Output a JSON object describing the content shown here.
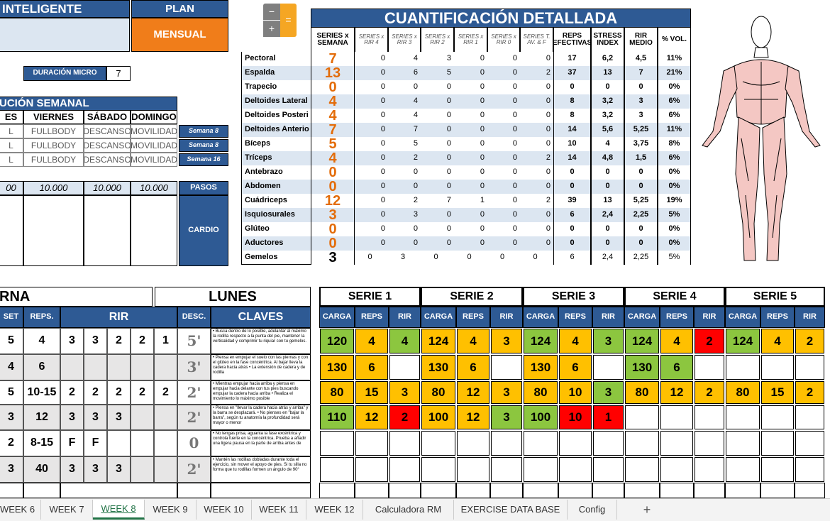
{
  "top": {
    "title": "INTELIGENTE",
    "plan": "PLAN",
    "mensual": "MENSUAL",
    "duracion_label": "DURACIÓN MICRO",
    "duracion_value": "7"
  },
  "calculator": {
    "keys": [
      "−",
      "+",
      "="
    ]
  },
  "semanal": {
    "title": "UCIÓN SEMANAL",
    "headers": [
      "ES",
      "VIERNES",
      "SÁBADO",
      "DOMINGO"
    ],
    "rows": [
      [
        "L",
        "FULLBODY",
        "DESCANSO",
        "MOVILIDAD",
        "Semana 8"
      ],
      [
        "L",
        "FULLBODY",
        "DESCANSO",
        "MOVILIDAD",
        "Semana 8"
      ],
      [
        "L",
        "FULLBODY",
        "DESCANSO",
        "MOVILIDAD",
        "Semana 16"
      ]
    ],
    "pasos": [
      "00",
      "10.000",
      "10.000",
      "10.000"
    ],
    "pasos_label": "PASOS",
    "cardio_label": "CARDIO"
  },
  "cuantificacion": {
    "title": "CUANTIFICACIÓN DETALLADA",
    "headers": [
      "SERIES x SEMANA",
      "SERIES x RIR 4",
      "SERIES x RIR 3",
      "SERIES x RIR 2",
      "SERIES x RIR 1",
      "SERIES x RIR 0",
      "SERIES T. AV. & F",
      "REPS EFECTIVAS",
      "STRESS INDEX",
      "RIR MEDIO",
      "% VOL."
    ],
    "rows": [
      {
        "name": "Pectoral",
        "values": [
          "7",
          "0",
          "4",
          "3",
          "0",
          "0",
          "0",
          "17",
          "6,2",
          "4,5",
          "11%"
        ]
      },
      {
        "name": "Espalda",
        "values": [
          "13",
          "0",
          "6",
          "5",
          "0",
          "0",
          "2",
          "37",
          "13",
          "7",
          "21%"
        ]
      },
      {
        "name": "Trapecio",
        "values": [
          "0",
          "0",
          "0",
          "0",
          "0",
          "0",
          "0",
          "0",
          "0",
          "0",
          "0%"
        ]
      },
      {
        "name": "Deltoides Lateral",
        "values": [
          "4",
          "0",
          "4",
          "0",
          "0",
          "0",
          "0",
          "8",
          "3,2",
          "3",
          "6%"
        ]
      },
      {
        "name": "Deltoides Posteri",
        "values": [
          "4",
          "0",
          "4",
          "0",
          "0",
          "0",
          "0",
          "8",
          "3,2",
          "3",
          "6%"
        ]
      },
      {
        "name": "Deltoides Anterio",
        "values": [
          "7",
          "0",
          "7",
          "0",
          "0",
          "0",
          "0",
          "14",
          "5,6",
          "5,25",
          "11%"
        ]
      },
      {
        "name": "Bíceps",
        "values": [
          "5",
          "0",
          "5",
          "0",
          "0",
          "0",
          "0",
          "10",
          "4",
          "3,75",
          "8%"
        ]
      },
      {
        "name": "Tríceps",
        "values": [
          "4",
          "0",
          "2",
          "0",
          "0",
          "0",
          "2",
          "14",
          "4,8",
          "1,5",
          "6%"
        ]
      },
      {
        "name": "Antebrazo",
        "values": [
          "0",
          "0",
          "0",
          "0",
          "0",
          "0",
          "0",
          "0",
          "0",
          "0",
          "0%"
        ]
      },
      {
        "name": "Abdomen",
        "values": [
          "0",
          "0",
          "0",
          "0",
          "0",
          "0",
          "0",
          "0",
          "0",
          "0",
          "0%"
        ]
      },
      {
        "name": "Cuádriceps",
        "values": [
          "12",
          "0",
          "2",
          "7",
          "1",
          "0",
          "2",
          "39",
          "13",
          "5,25",
          "19%"
        ]
      },
      {
        "name": "Isquiosurales",
        "values": [
          "3",
          "0",
          "3",
          "0",
          "0",
          "0",
          "0",
          "6",
          "2,4",
          "2,25",
          "5%"
        ]
      },
      {
        "name": "Glúteo",
        "values": [
          "0",
          "0",
          "0",
          "0",
          "0",
          "0",
          "0",
          "0",
          "0",
          "0",
          "0%"
        ]
      },
      {
        "name": "Aductores",
        "values": [
          "0",
          "0",
          "0",
          "0",
          "0",
          "0",
          "0",
          "0",
          "0",
          "0",
          "0%"
        ]
      },
      {
        "name": "Gemelos",
        "values": [
          "3",
          "0",
          "3",
          "0",
          "0",
          "0",
          "0",
          "6",
          "2,4",
          "2,25",
          "5%"
        ]
      }
    ]
  },
  "session": {
    "name": "RNA",
    "day": "LUNES",
    "headers": [
      "SET",
      "REPS.",
      "RIR",
      "DESC.",
      "CLAVES"
    ],
    "rows": [
      {
        "set": "5",
        "reps": "4",
        "rir": [
          "3",
          "3",
          "2",
          "2",
          "1"
        ],
        "desc": "5'",
        "claves": "• Busca dentro de lo posible, adelantar al máximo la rodilla respecto a la punta del pie, mantener la verticalidad y comprimir tu riquiar con tu gemelos."
      },
      {
        "set": "4",
        "reps": "6",
        "rir": [
          null,
          null,
          null,
          null,
          null
        ],
        "desc": "3'",
        "claves": "• Piensa en empujar el suelo con las piernas y con el glúteo en la fase concéntrica. Al bajar lleva la cadera hacia atrás • La extensión de cadera y de rodilla"
      },
      {
        "set": "5",
        "reps": "10-15",
        "rir": [
          "2",
          "2",
          "2",
          "2",
          "2"
        ],
        "desc": "2'",
        "claves": "• Mientras empujar hacia arriba y piensa en empujar hacia delante con tus pies buscando empujar la cadera hacia arriba • Realiza el movimiento lo máximo posible"
      },
      {
        "set": "3",
        "reps": "12",
        "rir": [
          "3",
          "3",
          "3",
          null,
          null
        ],
        "desc": "2'",
        "claves": "• Piensa en \"llevar la cadera hacia atrás y arriba\" y la barra se desplazará. • No pienses en \"bajar la barra\", según tu anatomía la profundidad será mayor o menor"
      },
      {
        "set": "2",
        "reps": "8-15",
        "rir": [
          "F",
          "F",
          null,
          null,
          null
        ],
        "desc": "0",
        "claves": "• No tengas prisa, aguanta la fase excéntrica y controla fuerte en la concéntrica. Prueba a añadir una ligera pausa en la parte de arriba antes de"
      },
      {
        "set": "3",
        "reps": "40",
        "rir": [
          "3",
          "3",
          "3",
          null,
          null
        ],
        "desc": "2'",
        "claves": "• Mantén las rodillas dobladas durante toda el ejercicio, sin mover el apoyo de pies. Si tu silla no forma que tu rodillas formen un ángulo de 90°"
      }
    ]
  },
  "series": {
    "names": [
      "SERIE 1",
      "SERIE 2",
      "SERIE 3",
      "SERIE 4",
      "SERIE 5"
    ],
    "subheaders": [
      "CARGA",
      "REPS",
      "RIR"
    ],
    "rows": [
      [
        {
          "text": "120",
          "fill": "#8cc63f"
        },
        {
          "text": "4",
          "fill": "#ffc000"
        },
        {
          "text": "4",
          "fill": "#8cc63f"
        },
        {
          "text": "124",
          "fill": "#ffc000"
        },
        {
          "text": "4",
          "fill": "#ffc000"
        },
        {
          "text": "3",
          "fill": "#ffc000"
        },
        {
          "text": "124",
          "fill": "#8cc63f"
        },
        {
          "text": "4",
          "fill": "#ffc000"
        },
        {
          "text": "3",
          "fill": "#8cc63f"
        },
        {
          "text": "124",
          "fill": "#8cc63f"
        },
        {
          "text": "4",
          "fill": "#ffc000"
        },
        {
          "text": "2",
          "fill": "#ff0000"
        },
        {
          "text": "124",
          "fill": "#8cc63f"
        },
        {
          "text": "4",
          "fill": "#ffc000"
        },
        {
          "text": "2",
          "fill": "#ffc000"
        }
      ],
      [
        {
          "text": "130",
          "fill": "#ffc000"
        },
        {
          "text": "6",
          "fill": "#ffc000"
        },
        null,
        {
          "text": "130",
          "fill": "#ffc000"
        },
        {
          "text": "6",
          "fill": "#ffc000"
        },
        null,
        {
          "text": "130",
          "fill": "#ffc000"
        },
        {
          "text": "6",
          "fill": "#ffc000"
        },
        null,
        {
          "text": "130",
          "fill": "#8cc63f"
        },
        {
          "text": "6",
          "fill": "#8cc63f"
        },
        null,
        null,
        null,
        null
      ],
      [
        {
          "text": "80",
          "fill": "#ffc000"
        },
        {
          "text": "15",
          "fill": "#ffc000"
        },
        {
          "text": "3",
          "fill": "#ffc000"
        },
        {
          "text": "80",
          "fill": "#ffc000"
        },
        {
          "text": "12",
          "fill": "#ffc000"
        },
        {
          "text": "3",
          "fill": "#ffc000"
        },
        {
          "text": "80",
          "fill": "#ffc000"
        },
        {
          "text": "10",
          "fill": "#ffc000"
        },
        {
          "text": "3",
          "fill": "#8cc63f"
        },
        {
          "text": "80",
          "fill": "#ffc000"
        },
        {
          "text": "12",
          "fill": "#ffc000"
        },
        {
          "text": "2",
          "fill": "#ffc000"
        },
        {
          "text": "80",
          "fill": "#ffc000"
        },
        {
          "text": "15",
          "fill": "#ffc000"
        },
        {
          "text": "2",
          "fill": "#ffc000"
        }
      ],
      [
        {
          "text": "110",
          "fill": "#8cc63f"
        },
        {
          "text": "12",
          "fill": "#ffc000"
        },
        {
          "text": "2",
          "fill": "#ff0000"
        },
        {
          "text": "100",
          "fill": "#ffc000"
        },
        {
          "text": "12",
          "fill": "#ffc000"
        },
        {
          "text": "3",
          "fill": "#8cc63f"
        },
        {
          "text": "100",
          "fill": "#8cc63f"
        },
        {
          "text": "10",
          "fill": "#ff0000"
        },
        {
          "text": "1",
          "fill": "#ff0000"
        },
        null,
        null,
        null,
        null,
        null,
        null
      ],
      [
        null,
        null,
        null,
        null,
        null,
        null,
        null,
        null,
        null,
        null,
        null,
        null,
        null,
        null,
        null
      ],
      [
        null,
        null,
        null,
        null,
        null,
        null,
        null,
        null,
        null,
        null,
        null,
        null,
        null,
        null,
        null
      ]
    ]
  },
  "tabs": {
    "items": [
      "WEEK 6",
      "WEEK 7",
      "WEEK 8",
      "WEEK 9",
      "WEEK 10",
      "WEEK 11",
      "WEEK 12",
      "Calculadora RM",
      "EXERCISE DATA BASE",
      "Config"
    ],
    "active": 2,
    "add": "+"
  }
}
